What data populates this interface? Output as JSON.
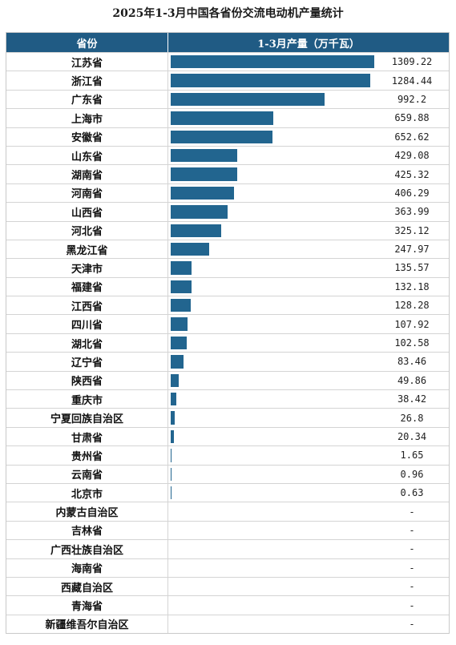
{
  "title": "2025年1-3月中国各省份交流电动机产量统计",
  "chart_data": {
    "type": "bar",
    "title": "2025年1-3月中国各省份交流电动机产量统计",
    "header": {
      "category": "省份",
      "value": "1-3月产量（万千瓦）"
    },
    "max_value": 1309.22,
    "rows": [
      {
        "name": "江苏省",
        "value": 1309.22,
        "label": "1309.22"
      },
      {
        "name": "浙江省",
        "value": 1284.44,
        "label": "1284.44"
      },
      {
        "name": "广东省",
        "value": 992.2,
        "label": "992.2"
      },
      {
        "name": "上海市",
        "value": 659.88,
        "label": "659.88"
      },
      {
        "name": "安徽省",
        "value": 652.62,
        "label": "652.62"
      },
      {
        "name": "山东省",
        "value": 429.08,
        "label": "429.08"
      },
      {
        "name": "湖南省",
        "value": 425.32,
        "label": "425.32"
      },
      {
        "name": "河南省",
        "value": 406.29,
        "label": "406.29"
      },
      {
        "name": "山西省",
        "value": 363.99,
        "label": "363.99"
      },
      {
        "name": "河北省",
        "value": 325.12,
        "label": "325.12"
      },
      {
        "name": "黑龙江省",
        "value": 247.97,
        "label": "247.97"
      },
      {
        "name": "天津市",
        "value": 135.57,
        "label": "135.57"
      },
      {
        "name": "福建省",
        "value": 132.18,
        "label": "132.18"
      },
      {
        "name": "江西省",
        "value": 128.28,
        "label": "128.28"
      },
      {
        "name": "四川省",
        "value": 107.92,
        "label": "107.92"
      },
      {
        "name": "湖北省",
        "value": 102.58,
        "label": "102.58"
      },
      {
        "name": "辽宁省",
        "value": 83.46,
        "label": "83.46"
      },
      {
        "name": "陕西省",
        "value": 49.86,
        "label": "49.86"
      },
      {
        "name": "重庆市",
        "value": 38.42,
        "label": "38.42"
      },
      {
        "name": "宁夏回族自治区",
        "value": 26.8,
        "label": "26.8"
      },
      {
        "name": "甘肃省",
        "value": 20.34,
        "label": "20.34"
      },
      {
        "name": "贵州省",
        "value": 1.65,
        "label": "1.65"
      },
      {
        "name": "云南省",
        "value": 0.96,
        "label": "0.96"
      },
      {
        "name": "北京市",
        "value": 0.63,
        "label": "0.63"
      },
      {
        "name": "内蒙古自治区",
        "value": null,
        "label": "-"
      },
      {
        "name": "吉林省",
        "value": null,
        "label": "-"
      },
      {
        "name": "广西壮族自治区",
        "value": null,
        "label": "-"
      },
      {
        "name": "海南省",
        "value": null,
        "label": "-"
      },
      {
        "name": "西藏自治区",
        "value": null,
        "label": "-"
      },
      {
        "name": "青海省",
        "value": null,
        "label": "-"
      },
      {
        "name": "新疆维吾尔自治区",
        "value": null,
        "label": "-"
      }
    ],
    "colors": {
      "header_bg": "#205b84",
      "bar": "#22658f"
    }
  }
}
